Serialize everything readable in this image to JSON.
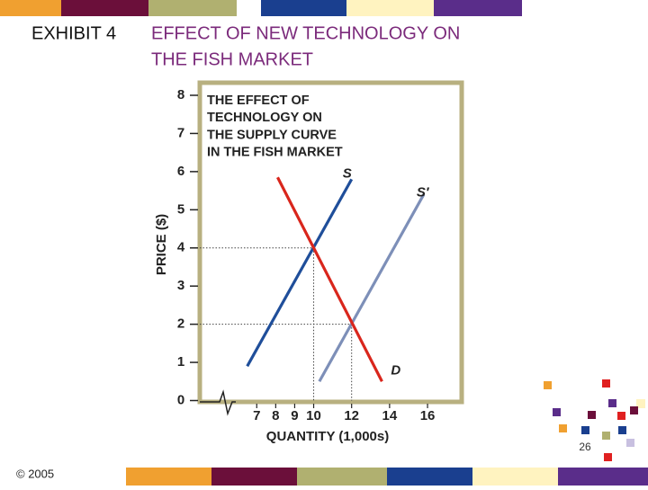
{
  "slide": {
    "exhibit": "EXHIBIT 4",
    "title_lines": [
      "EFFECT OF NEW TECHNOLOGY ON",
      "THE FISH MARKET"
    ],
    "page_number": "26",
    "copyright": "© 2005"
  },
  "chart_data": {
    "type": "line",
    "title_lines": [
      "THE EFFECT OF",
      "TECHNOLOGY ON",
      "THE SUPPLY CURVE",
      "IN THE FISH MARKET"
    ],
    "x_label": "QUANTITY (1,000s)",
    "y_label": "PRICE ($)",
    "xlim": [
      4,
      17.8
    ],
    "ylim": [
      0,
      8
    ],
    "xticks": [
      7,
      8,
      9,
      10,
      12,
      14,
      16
    ],
    "yticks": [
      0,
      1,
      2,
      3,
      4,
      5,
      6,
      7,
      8
    ],
    "series": [
      {
        "name": "S",
        "color": "#1f4e9a",
        "x": [
          6.5,
          12
        ],
        "values": [
          0.9,
          5.8
        ]
      },
      {
        "name": "S′",
        "color": "#7d8fb8",
        "x": [
          10.3,
          15.8
        ],
        "values": [
          0.5,
          5.4
        ]
      },
      {
        "name": "D",
        "color": "#d9261c",
        "x": [
          8.1,
          13.6
        ],
        "values": [
          5.85,
          0.5
        ]
      }
    ],
    "reference_points": [
      {
        "x": 10,
        "y": 4
      },
      {
        "x": 12,
        "y": 2
      }
    ]
  }
}
